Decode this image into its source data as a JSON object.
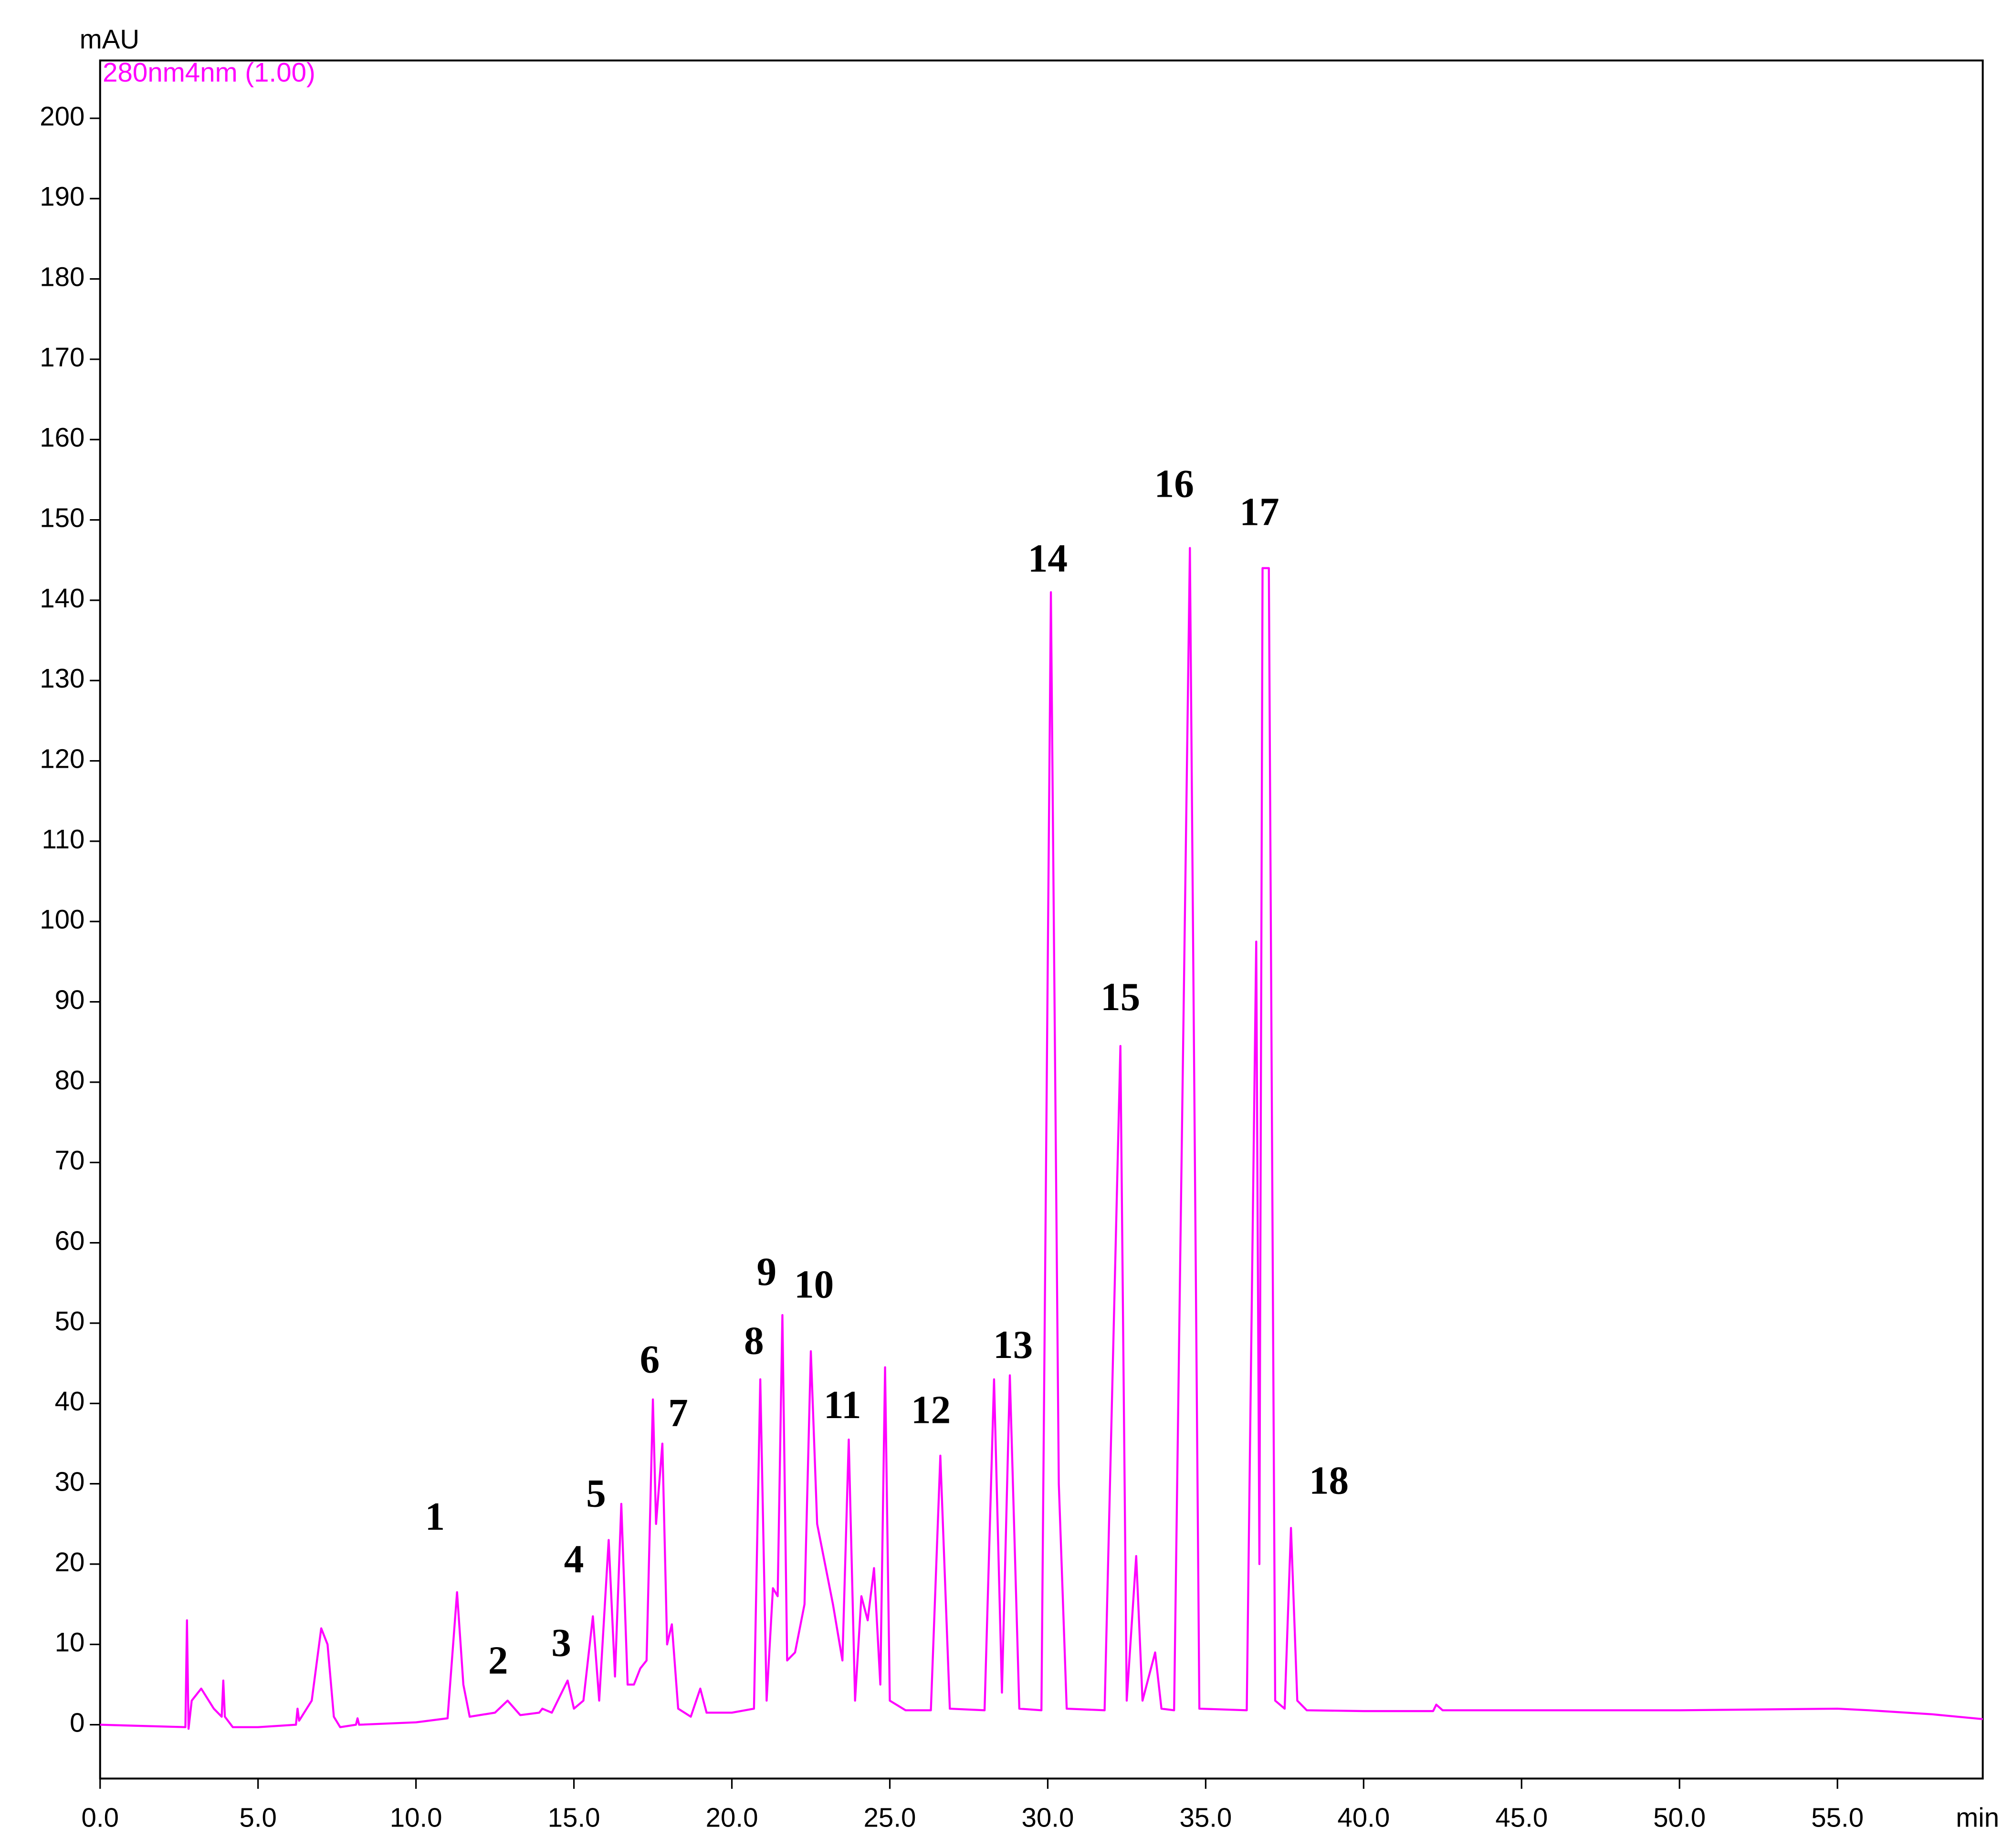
{
  "chart_data": {
    "type": "line",
    "y_label": "mAU",
    "x_label": "min",
    "xlim": [
      0,
      59.6
    ],
    "ylim": [
      -6.7,
      207.2
    ],
    "xticks": [
      {
        "value": 0,
        "label": "0.0"
      },
      {
        "value": 5,
        "label": "5.0"
      },
      {
        "value": 10,
        "label": "10.0"
      },
      {
        "value": 15,
        "label": "15.0"
      },
      {
        "value": 20,
        "label": "20.0"
      },
      {
        "value": 25,
        "label": "25.0"
      },
      {
        "value": 30,
        "label": "30.0"
      },
      {
        "value": 35,
        "label": "35.0"
      },
      {
        "value": 40,
        "label": "40.0"
      },
      {
        "value": 45,
        "label": "45.0"
      },
      {
        "value": 50,
        "label": "50.0"
      },
      {
        "value": 55,
        "label": "55.0"
      }
    ],
    "yticks": [
      0,
      10,
      20,
      30,
      40,
      50,
      60,
      70,
      80,
      90,
      100,
      110,
      120,
      130,
      140,
      150,
      160,
      170,
      180,
      190,
      200
    ],
    "x": [
      0,
      2.7,
      2.75,
      2.8,
      2.9,
      3.2,
      3.6,
      3.85,
      3.9,
      3.95,
      4.2,
      5,
      6.2,
      6.25,
      6.3,
      6.7,
      7,
      7.2,
      7.4,
      7.6,
      8.1,
      8.15,
      8.2,
      10,
      11,
      11.3,
      11.5,
      11.7,
      12.5,
      12.9,
      13.3,
      13.9,
      14.0,
      14.3,
      14.8,
      15.0,
      15.3,
      15.6,
      15.8,
      16.1,
      16.3,
      16.5,
      16.7,
      16.9,
      17.1,
      17.3,
      17.5,
      17.6,
      17.8,
      17.95,
      18.1,
      18.3,
      18.7,
      19.0,
      19.2,
      20,
      20.7,
      20.9,
      21.1,
      21.3,
      21.45,
      21.6,
      21.75,
      22.0,
      22.3,
      22.5,
      22.7,
      23.2,
      23.5,
      23.7,
      23.9,
      24.1,
      24.3,
      24.5,
      24.7,
      24.85,
      25.0,
      25.5,
      26.3,
      26.6,
      26.9,
      28.0,
      28.3,
      28.55,
      28.8,
      29.1,
      29.8,
      30.1,
      30.35,
      30.6,
      31.8,
      32.3,
      32.5,
      32.8,
      33.0,
      33.4,
      33.6,
      34.0,
      34.5,
      34.8,
      36.3,
      36.6,
      36.7,
      36.8,
      37.0,
      37.2,
      37.5,
      37.7,
      37.9,
      38.2,
      40,
      42.2,
      42.3,
      42.5,
      50,
      55,
      56,
      58,
      59.6
    ],
    "series": [
      {
        "name": "280nm4nm (1.00)",
        "color": "#ff00ff",
        "values": [
          0,
          -0.3,
          13,
          -0.5,
          3,
          4.5,
          2,
          1,
          5.5,
          1,
          -0.3,
          -0.3,
          0,
          2,
          0.5,
          3,
          12,
          10,
          1,
          -0.3,
          0,
          0.8,
          0,
          0.3,
          0.8,
          16.5,
          5,
          1,
          1.5,
          3,
          1.2,
          1.5,
          2,
          1.5,
          5.5,
          2,
          3,
          13.5,
          3,
          23,
          6,
          27.5,
          5,
          5,
          7,
          8,
          40.5,
          25,
          35,
          10,
          12.5,
          2,
          1,
          4.5,
          1.5,
          1.5,
          2,
          43,
          3,
          17,
          16,
          51,
          8,
          9,
          15,
          46.5,
          25,
          15,
          8,
          35.5,
          3,
          16,
          13,
          19.5,
          5,
          44.5,
          3,
          1.8,
          1.8,
          33.5,
          2,
          1.8,
          43,
          4,
          43.5,
          2,
          1.8,
          141,
          30,
          2,
          1.8,
          84.5,
          3,
          21,
          3,
          9,
          2,
          1.8,
          146.5,
          2,
          1.8,
          97.5,
          20,
          144,
          144,
          3,
          2,
          24.5,
          3,
          1.8,
          1.7,
          1.7,
          2.5,
          1.8,
          1.8,
          2,
          1.8,
          1.3,
          0.7
        ]
      }
    ],
    "annotations": [
      {
        "text": "1",
        "x": 10.6,
        "y": 25.4
      },
      {
        "text": "2",
        "x": 12.6,
        "y": 7.5
      },
      {
        "text": "3",
        "x": 14.6,
        "y": 9.7
      },
      {
        "text": "4",
        "x": 15.0,
        "y": 20.1
      },
      {
        "text": "5",
        "x": 15.7,
        "y": 28.3
      },
      {
        "text": "6",
        "x": 17.4,
        "y": 45
      },
      {
        "text": "7",
        "x": 18.3,
        "y": 38.3
      },
      {
        "text": "8",
        "x": 20.7,
        "y": 47.3
      },
      {
        "text": "9",
        "x": 21.1,
        "y": 55.9
      },
      {
        "text": "10",
        "x": 22.6,
        "y": 54.3
      },
      {
        "text": "11",
        "x": 23.5,
        "y": 39.3
      },
      {
        "text": "12",
        "x": 26.3,
        "y": 38.7
      },
      {
        "text": "13",
        "x": 28.9,
        "y": 46.8
      },
      {
        "text": "14",
        "x": 30.0,
        "y": 144.7
      },
      {
        "text": "15",
        "x": 32.3,
        "y": 90.1
      },
      {
        "text": "16",
        "x": 34.0,
        "y": 154
      },
      {
        "text": "17",
        "x": 36.7,
        "y": 150.5
      },
      {
        "text": "18",
        "x": 38.9,
        "y": 29.9
      }
    ]
  }
}
